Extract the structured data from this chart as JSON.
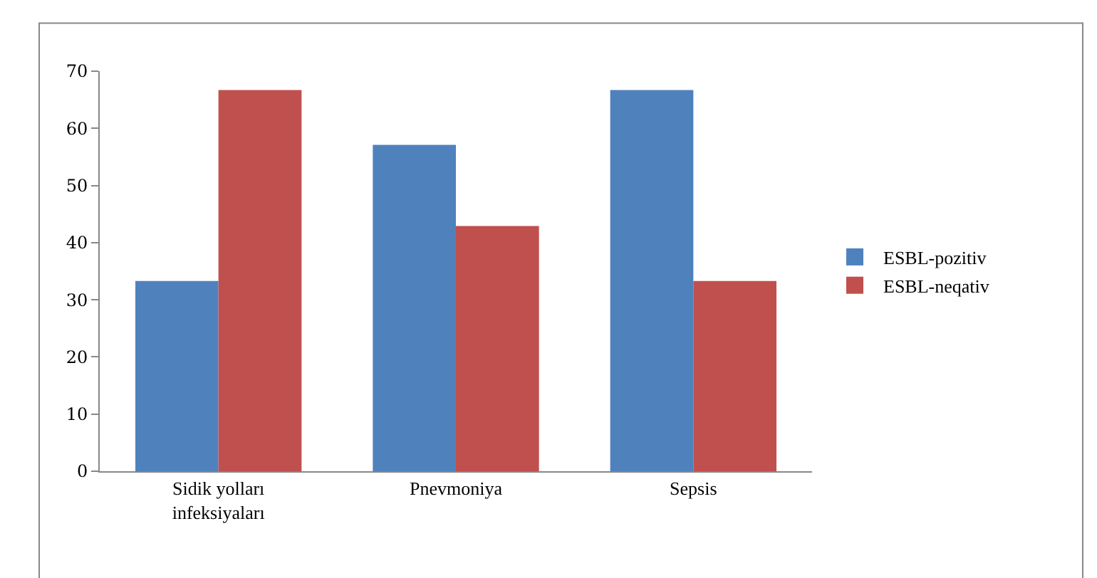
{
  "chart_data": {
    "type": "bar",
    "categories": [
      "Sidik yolları infeksiyaları",
      "Pnevmoniya",
      "Sepsis"
    ],
    "series": [
      {
        "name": "ESBL-pozitiv",
        "color": "#4f81bd",
        "values": [
          33.3,
          57.1,
          66.7
        ]
      },
      {
        "name": "ESBL-neqativ",
        "color": "#c0504d",
        "values": [
          66.7,
          42.9,
          33.3
        ]
      }
    ],
    "ylim": [
      0,
      70
    ],
    "yticks": [
      0,
      10,
      20,
      30,
      40,
      50,
      60,
      70
    ],
    "grid": false,
    "legend": "right"
  }
}
